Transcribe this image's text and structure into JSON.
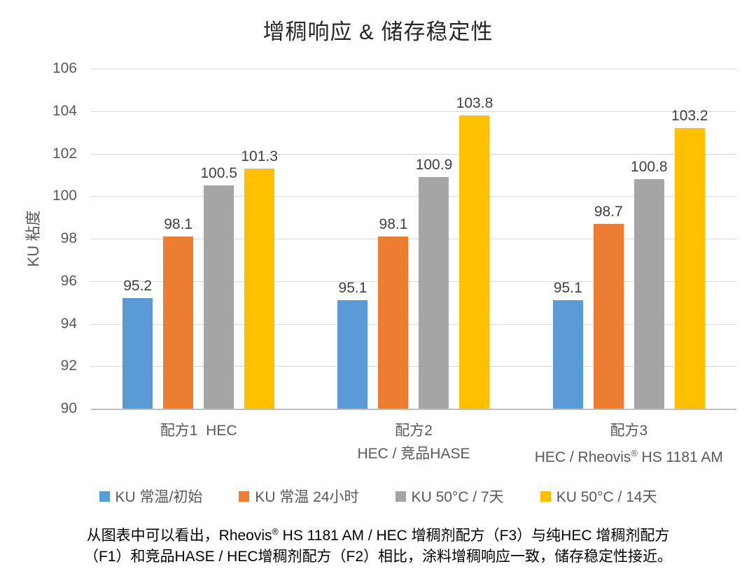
{
  "chart_data": {
    "type": "bar",
    "title": "增稠响应 & 储存稳定性",
    "xlabel": "",
    "ylabel": "KU 粘度",
    "ylim": [
      90,
      106
    ],
    "ytick_step": 2,
    "grid": true,
    "legend_position": "bottom",
    "categories": [
      {
        "line1": "配方1  HEC",
        "line2": ""
      },
      {
        "line1": "配方2",
        "line2": "HEC / 竞品HASE"
      },
      {
        "line1": "配方3",
        "line2": "HEC / Rheovis® HS 1181 AM"
      }
    ],
    "series": [
      {
        "name": "KU 常温/初始",
        "color": "#5B9BD5",
        "values": [
          95.2,
          95.1,
          95.1
        ]
      },
      {
        "name": "KU 常温 24小时",
        "color": "#ED7D31",
        "values": [
          98.1,
          98.1,
          98.7
        ]
      },
      {
        "name": "KU 50°C / 7天",
        "color": "#A5A5A5",
        "values": [
          100.5,
          100.9,
          100.8
        ]
      },
      {
        "name": "KU 50°C / 14天",
        "color": "#FFC000",
        "values": [
          101.3,
          103.8,
          103.2
        ]
      }
    ],
    "colors": {
      "title_text": "#262626",
      "axis_text": "#595959",
      "data_label_text": "#404040",
      "gridline": "#D9D9D9",
      "axis_line": "#BFBFBF",
      "background": "#FFFFFF"
    }
  },
  "caption": {
    "line1": "从图表中可以看出，Rheovis® HS 1181 AM / HEC 增稠剂配方（F3）与纯HEC 增稠剂配方",
    "line2": "（F1）和竞品HASE / HEC增稠剂配方（F2）相比，涂料增稠响应一致，储存稳定性接近。"
  }
}
